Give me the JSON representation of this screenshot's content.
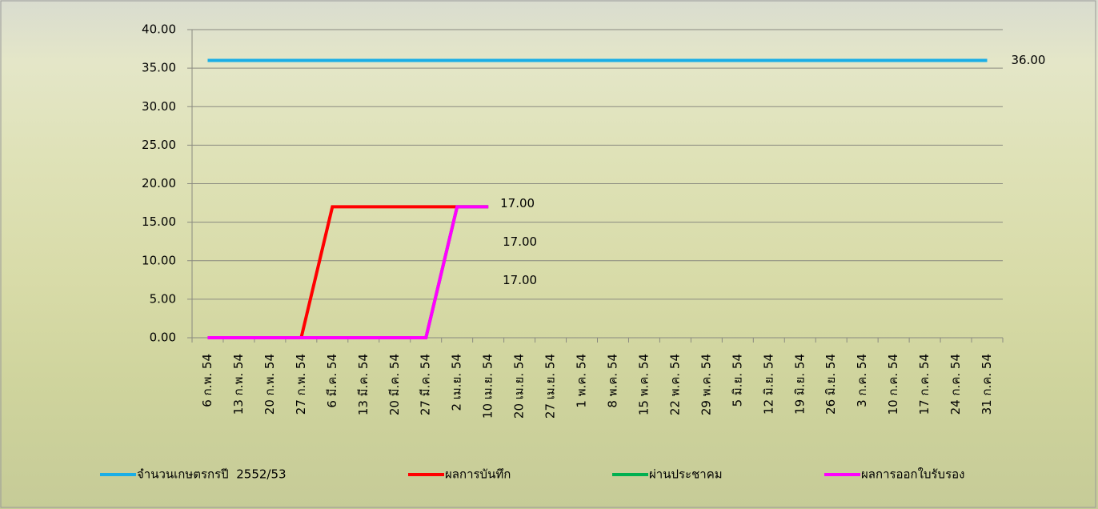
{
  "chart_data": {
    "type": "line",
    "categories": [
      "6 ก.พ. 54",
      "13 ก.พ. 54",
      "20 ก.พ. 54",
      "27 ก.พ. 54",
      "6 มี.ค. 54",
      "13 มี.ค. 54",
      "20 มี.ค. 54",
      "27 มี.ค. 54",
      "2 เม.ย. 54",
      "10 เม.ย. 54",
      "20 เม.ย. 54",
      "27 เม.ย. 54",
      "1 พ.ค. 54",
      "8 พ.ค. 54",
      "15 พ.ค. 54",
      "22 พ.ค. 54",
      "29 พ.ค. 54",
      "5 มิ.ย. 54",
      "12 มิ.ย. 54",
      "19 มิ.ย. 54",
      "26 มิ.ย. 54",
      "3 ก.ค. 54",
      "10 ก.ค. 54",
      "17 ก.ค. 54",
      "24 ก.ค. 54",
      "31 ก.ค. 54"
    ],
    "series": [
      {
        "name": "จำนวนเกษตรกรปี  2552/53",
        "color": "#1aaee6",
        "values": [
          36,
          36,
          36,
          36,
          36,
          36,
          36,
          36,
          36,
          36,
          36,
          36,
          36,
          36,
          36,
          36,
          36,
          36,
          36,
          36,
          36,
          36,
          36,
          36,
          36,
          36
        ],
        "value_labels": [
          null,
          null,
          null,
          null,
          null,
          null,
          null,
          null,
          null,
          null,
          null,
          null,
          null,
          null,
          null,
          null,
          null,
          null,
          null,
          null,
          null,
          null,
          null,
          null,
          null,
          "36.00"
        ]
      },
      {
        "name": "ผลการบันทึก",
        "color": "#ff0000",
        "values": [
          0,
          0,
          0,
          0,
          17,
          17,
          17,
          17,
          17,
          17,
          null,
          null,
          null,
          null,
          null,
          null,
          null,
          null,
          null,
          null,
          null,
          null,
          null,
          null,
          null,
          null
        ],
        "value_labels": [
          null,
          null,
          null,
          null,
          null,
          null,
          null,
          null,
          null,
          "17.00",
          null,
          null,
          null,
          null,
          null,
          null,
          null,
          null,
          null,
          null,
          null,
          null,
          null,
          null,
          null,
          null
        ]
      },
      {
        "name": "ผ่านประชาคม",
        "color": "#00b050",
        "values": [
          0,
          0,
          0,
          0,
          0,
          0,
          0,
          0,
          17,
          17,
          null,
          null,
          null,
          null,
          null,
          null,
          null,
          null,
          null,
          null,
          null,
          null,
          null,
          null,
          null,
          null
        ],
        "value_labels": [
          null,
          null,
          null,
          null,
          null,
          null,
          null,
          null,
          null,
          "17.00",
          null,
          null,
          null,
          null,
          null,
          null,
          null,
          null,
          null,
          null,
          null,
          null,
          null,
          null,
          null,
          null
        ]
      },
      {
        "name": "ผลการออกใบรับรอง",
        "color": "#ff00ff",
        "values": [
          0,
          0,
          0,
          0,
          0,
          0,
          0,
          0,
          17,
          17,
          null,
          null,
          null,
          null,
          null,
          null,
          null,
          null,
          null,
          null,
          null,
          null,
          null,
          null,
          null,
          null
        ],
        "value_labels": [
          null,
          null,
          null,
          null,
          null,
          null,
          null,
          null,
          null,
          "17.00",
          null,
          null,
          null,
          null,
          null,
          null,
          null,
          null,
          null,
          null,
          null,
          null,
          null,
          null,
          null,
          null
        ]
      }
    ],
    "ylim": [
      0,
      40
    ],
    "yticks": [
      {
        "value": 0,
        "label": "0.00"
      },
      {
        "value": 5,
        "label": "5.00"
      },
      {
        "value": 10,
        "label": "10.00"
      },
      {
        "value": 15,
        "label": "15.00"
      },
      {
        "value": 20,
        "label": "20.00"
      },
      {
        "value": 25,
        "label": "25.00"
      },
      {
        "value": 30,
        "label": "30.00"
      },
      {
        "value": 35,
        "label": "35.00"
      },
      {
        "value": 40,
        "label": "40.00"
      }
    ],
    "grid": true,
    "legend": "bottom"
  }
}
